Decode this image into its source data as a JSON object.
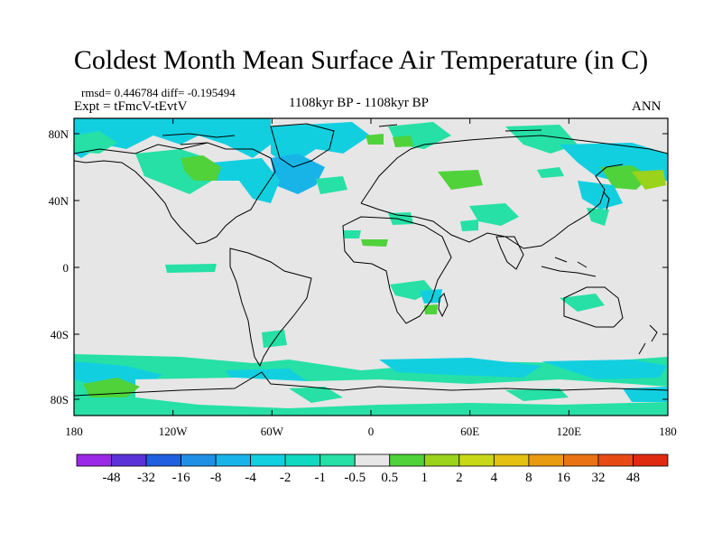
{
  "title": "Coldest Month Mean Surface Air Temperature (in C)",
  "stats": "rmsd= 0.446784 diff= -0.195494",
  "experiment": "Expt = tFmcV-tEvtV",
  "period": "1108kyr BP - 1108kyr BP",
  "season": "ANN",
  "lat_labels": [
    "80N",
    "40N",
    "0",
    "40S",
    "80S"
  ],
  "lon_labels": [
    "180",
    "120W",
    "60W",
    "0",
    "60E",
    "120E",
    "180"
  ],
  "colorbar": {
    "labels": [
      "-48",
      "-32",
      "-16",
      "-8",
      "-4",
      "-2",
      "-1",
      "-0.5",
      "0.5",
      "1",
      "2",
      "4",
      "8",
      "16",
      "32",
      "48"
    ],
    "colors": [
      "#9a28e6",
      "#5a32d8",
      "#1f5fe0",
      "#1f8fe6",
      "#18b4e8",
      "#12cfe0",
      "#10d9c2",
      "#26e0a6",
      "#e6e6e6",
      "#4fd23a",
      "#9ad21c",
      "#c8d816",
      "#e4c010",
      "#e89a10",
      "#ea7212",
      "#e84a14",
      "#e02a10"
    ]
  },
  "colors": {
    "land_fill": "#e6e6e6",
    "neg_small": "#26e0a6",
    "neg_mid": "#12cfe0",
    "neg_large": "#18b4e8",
    "pos_small": "#4fd23a",
    "pos_mid": "#9ad21c"
  }
}
